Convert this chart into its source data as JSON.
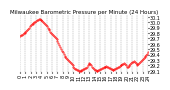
{
  "title": "Milwaukee Barometric Pressure per Minute (24 Hours)",
  "title_fontsize": 4.0,
  "bg_color": "#ffffff",
  "line_color": "#ff0000",
  "grid_color": "#999999",
  "ylim": [
    29.08,
    30.14
  ],
  "yticks": [
    29.1,
    29.2,
    29.3,
    29.4,
    29.5,
    29.6,
    29.7,
    29.8,
    29.9,
    30.0,
    30.1
  ],
  "ytick_labels": [
    "29.1",
    "29.2",
    "29.3",
    "29.4",
    "29.5",
    "29.6",
    "29.7",
    "29.8",
    "29.9",
    "30.0",
    "30.1"
  ],
  "x_values": [
    0,
    1,
    2,
    3,
    4,
    5,
    6,
    7,
    8,
    9,
    10,
    11,
    12,
    13,
    14,
    15,
    16,
    17,
    18,
    19,
    20,
    21,
    22,
    23,
    24,
    25,
    26,
    27,
    28,
    29,
    30,
    31,
    32,
    33,
    34,
    35,
    36,
    37,
    38,
    39,
    40,
    41,
    42,
    43,
    44,
    45,
    46,
    47,
    48,
    49,
    50,
    51,
    52,
    53,
    54,
    55,
    56,
    57,
    58,
    59,
    60,
    61,
    62,
    63,
    64,
    65,
    66,
    67,
    68,
    69,
    70,
    71,
    72,
    73,
    74,
    75,
    76,
    77,
    78,
    79,
    80,
    81,
    82,
    83,
    84,
    85,
    86,
    87,
    88,
    89,
    90,
    91,
    92,
    93,
    94,
    95,
    96,
    97,
    98,
    99,
    100,
    101,
    102,
    103,
    104,
    105,
    106,
    107,
    108,
    109,
    110,
    111,
    112,
    113,
    114,
    115,
    116,
    117,
    118,
    119,
    120,
    121,
    122,
    123,
    124,
    125,
    126,
    127,
    128,
    129,
    130,
    131,
    132,
    133,
    134,
    135,
    136,
    137,
    138,
    139,
    140,
    141,
    142,
    143,
    144
  ],
  "y_values": [
    29.75,
    29.76,
    29.77,
    29.78,
    29.79,
    29.8,
    29.82,
    29.84,
    29.86,
    29.88,
    29.9,
    29.92,
    29.94,
    29.96,
    29.97,
    29.98,
    30.0,
    30.01,
    30.02,
    30.03,
    30.04,
    30.05,
    30.05,
    30.04,
    30.03,
    30.02,
    30.0,
    29.98,
    29.96,
    29.94,
    29.92,
    29.9,
    29.88,
    29.85,
    29.82,
    29.8,
    29.78,
    29.76,
    29.74,
    29.72,
    29.7,
    29.68,
    29.65,
    29.62,
    29.58,
    29.54,
    29.5,
    29.47,
    29.44,
    29.41,
    29.38,
    29.36,
    29.34,
    29.32,
    29.3,
    29.28,
    29.26,
    29.24,
    29.22,
    29.2,
    29.18,
    29.16,
    29.14,
    29.13,
    29.12,
    29.11,
    29.1,
    29.1,
    29.1,
    29.11,
    29.12,
    29.13,
    29.14,
    29.15,
    29.16,
    29.18,
    29.2,
    29.22,
    29.24,
    29.22,
    29.2,
    29.18,
    29.16,
    29.14,
    29.12,
    29.11,
    29.1,
    29.1,
    29.11,
    29.12,
    29.13,
    29.14,
    29.15,
    29.16,
    29.17,
    29.18,
    29.18,
    29.19,
    29.18,
    29.17,
    29.16,
    29.15,
    29.14,
    29.13,
    29.12,
    29.12,
    29.13,
    29.14,
    29.15,
    29.16,
    29.17,
    29.18,
    29.19,
    29.2,
    29.21,
    29.22,
    29.23,
    29.24,
    29.22,
    29.2,
    29.18,
    29.18,
    29.19,
    29.2,
    29.22,
    29.24,
    29.26,
    29.27,
    29.28,
    29.26,
    29.24,
    29.22,
    29.2,
    29.22,
    29.24,
    29.26,
    29.28,
    29.3,
    29.32,
    29.34,
    29.36,
    29.38,
    29.4,
    29.42,
    29.44
  ],
  "xtick_positions": [
    0,
    6,
    12,
    18,
    24,
    30,
    36,
    42,
    48,
    54,
    60,
    66,
    72,
    78,
    84,
    90,
    96,
    102,
    108,
    114,
    120,
    126,
    132,
    138,
    144
  ],
  "xtick_labels": [
    "0",
    "1",
    "2",
    "3",
    "4",
    "5",
    "6",
    "7",
    "8",
    "9",
    "10",
    "11",
    "12",
    "13",
    "14",
    "15",
    "16",
    "17",
    "18",
    "19",
    "20",
    "21",
    "22",
    "23",
    "24"
  ],
  "tick_fontsize": 3.5,
  "markersize": 0.8
}
